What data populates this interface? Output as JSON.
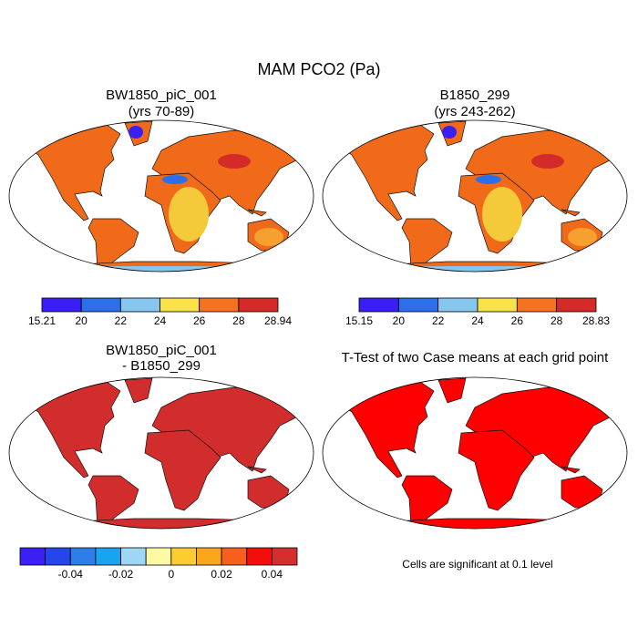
{
  "title": "MAM PCO2 (Pa)",
  "panels": [
    {
      "title": "BW1850_piC_001",
      "subtitle": "(yrs 70-89)"
    },
    {
      "title": "B1850_299",
      "subtitle": "(yrs 243-262)"
    },
    {
      "title": "BW1850_piC_001",
      "subtitle": "- B1850_299"
    },
    {
      "title": "T-Test of two Case means at each grid point"
    }
  ],
  "colorbars": [
    {
      "colors": [
        "#3a1ff5",
        "#2c6fe8",
        "#87c6ee",
        "#f9e14a",
        "#f5731e",
        "#d52a2a"
      ],
      "labels": [
        15.21,
        20,
        22,
        24,
        26,
        28,
        28.94
      ]
    },
    {
      "colors": [
        "#3a1ff5",
        "#2c6fe8",
        "#87c6ee",
        "#f9e14a",
        "#f5731e",
        "#d52a2a"
      ],
      "labels": [
        15.15,
        20,
        22,
        24,
        26,
        28,
        28.83
      ]
    },
    {
      "colors": [
        "#3b1ff5",
        "#2646ec",
        "#2e7ee9",
        "#19a3f0",
        "#9fd5f5",
        "#fff9a3",
        "#fbcd33",
        "#f9a61c",
        "#f7601c",
        "#f30d0d",
        "#d52e2e"
      ],
      "labels": [
        -0.04,
        -0.02,
        0,
        0.02,
        0.04
      ]
    }
  ],
  "note": "Cells are significant at 0.1 level"
}
